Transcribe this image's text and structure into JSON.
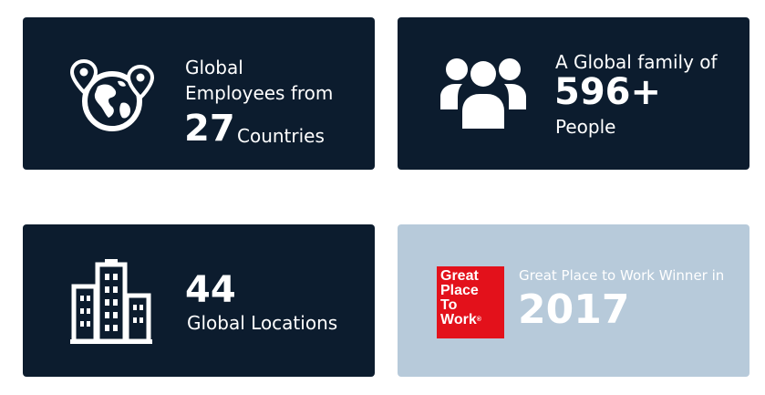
{
  "employees_card": {
    "line1": "Global",
    "line2": "Employees from",
    "count": "27",
    "suffix": "Countries",
    "icon": "globe-with-pins-icon"
  },
  "family_card": {
    "line1": "A Global family of",
    "count": "596+",
    "line3": "People",
    "icon": "people-group-icon"
  },
  "locations_card": {
    "count": "44",
    "label": "Global Locations",
    "icon": "office-building-icon"
  },
  "gptw_card": {
    "badge": {
      "line1": "Great",
      "line2": "Place",
      "line3": "To",
      "line4": "Work",
      "mark": "®"
    },
    "caption": "Great Place to Work Winner in",
    "year": "2017"
  },
  "colors": {
    "dark_card": "#0c1c2e",
    "light_card": "#b7cada",
    "badge_red": "#e3111b",
    "text": "#ffffff"
  }
}
